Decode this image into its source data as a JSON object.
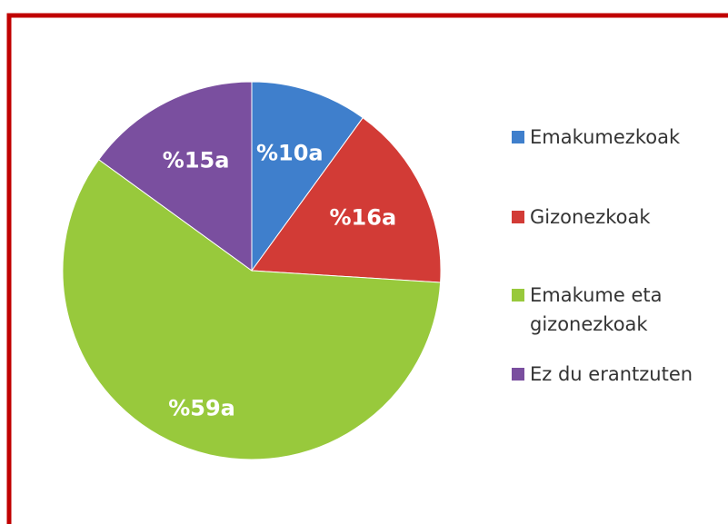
{
  "chart_data": {
    "type": "pie",
    "categories": [
      "Emakumezkoak",
      "Gizonezkoak",
      "Emakume eta gizonezkoak",
      "Ez du erantzuten"
    ],
    "values": [
      10,
      16,
      59,
      15
    ],
    "value_labels": [
      "%10a",
      "%16a",
      "%59a",
      "%15a"
    ],
    "colors": [
      "#3f7fcc",
      "#d23b36",
      "#98c93c",
      "#7a4f9f"
    ],
    "legend": "right"
  }
}
